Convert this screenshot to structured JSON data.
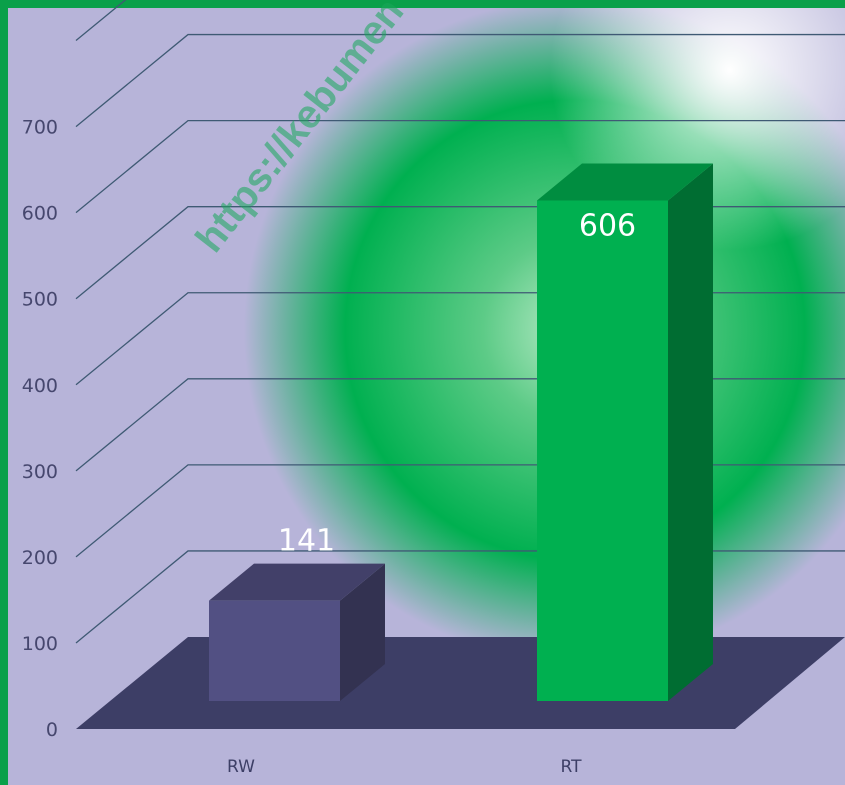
{
  "colors": {
    "background": "#b7b4d9",
    "glow": "#00b050",
    "frame": "#0aa04a",
    "gridline": "#3f5a74",
    "floor": "#3d3e66",
    "axis_text": "#46476e"
  },
  "watermark": "https://kebumen",
  "chart_data": {
    "type": "bar",
    "three_d": true,
    "categories": [
      "RW",
      "RT"
    ],
    "values": [
      141,
      606
    ],
    "bar_colors": [
      "#525083",
      "#00b050"
    ],
    "data_labels": [
      "141",
      "606"
    ],
    "title": "",
    "xlabel": "",
    "ylabel": "",
    "ylim": [
      0,
      800
    ],
    "yticks": [
      "0",
      "100",
      "200",
      "300",
      "400",
      "500",
      "600",
      "700"
    ],
    "grid": true,
    "legend": "none"
  }
}
